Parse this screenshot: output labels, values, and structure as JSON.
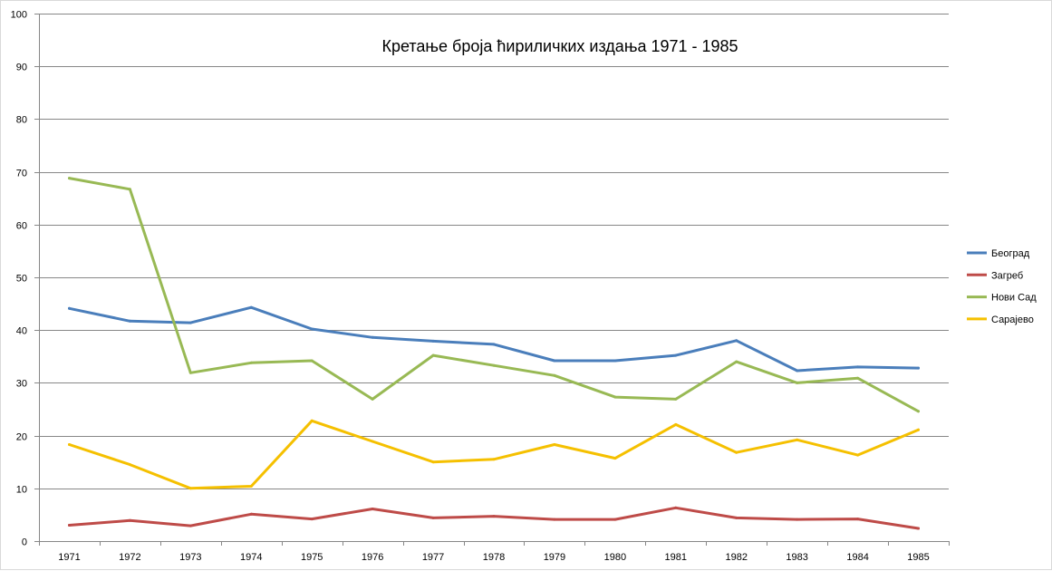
{
  "chart_data": {
    "type": "line",
    "title": "Кретање броја ћириличких издања 1971 - 1985",
    "xlabel": "",
    "ylabel": "",
    "ylim": [
      0,
      100
    ],
    "y_ticks": [
      0,
      10,
      20,
      30,
      40,
      50,
      60,
      70,
      80,
      90,
      100
    ],
    "grid": true,
    "legend_position": "right",
    "categories": [
      "1971",
      "1972",
      "1973",
      "1974",
      "1975",
      "1976",
      "1977",
      "1978",
      "1979",
      "1980",
      "1981",
      "1982",
      "1983",
      "1984",
      "1985"
    ],
    "series": [
      {
        "name": "Београд",
        "color": "#4a7ebb",
        "values": [
          44.1,
          41.7,
          41.4,
          44.3,
          40.2,
          38.6,
          37.9,
          37.3,
          34.2,
          34.2,
          35.2,
          38.0,
          32.3,
          33.0,
          32.8
        ]
      },
      {
        "name": "Загреб",
        "color": "#be4b48",
        "values": [
          3.0,
          3.9,
          2.9,
          5.1,
          4.2,
          6.1,
          4.4,
          4.7,
          4.1,
          4.1,
          6.3,
          4.4,
          4.1,
          4.2,
          2.4
        ]
      },
      {
        "name": "Нови Сад",
        "color": "#98b954",
        "values": [
          68.8,
          66.7,
          31.9,
          33.8,
          34.2,
          26.9,
          35.2,
          33.3,
          31.4,
          27.3,
          26.9,
          34.0,
          30.0,
          30.9,
          24.6
        ]
      },
      {
        "name": "Сарајево",
        "color": "#f5c000",
        "values": [
          18.3,
          14.5,
          10.0,
          10.4,
          22.8,
          18.9,
          15.0,
          15.5,
          18.3,
          15.7,
          22.1,
          16.8,
          19.2,
          16.3,
          21.1
        ]
      }
    ]
  }
}
